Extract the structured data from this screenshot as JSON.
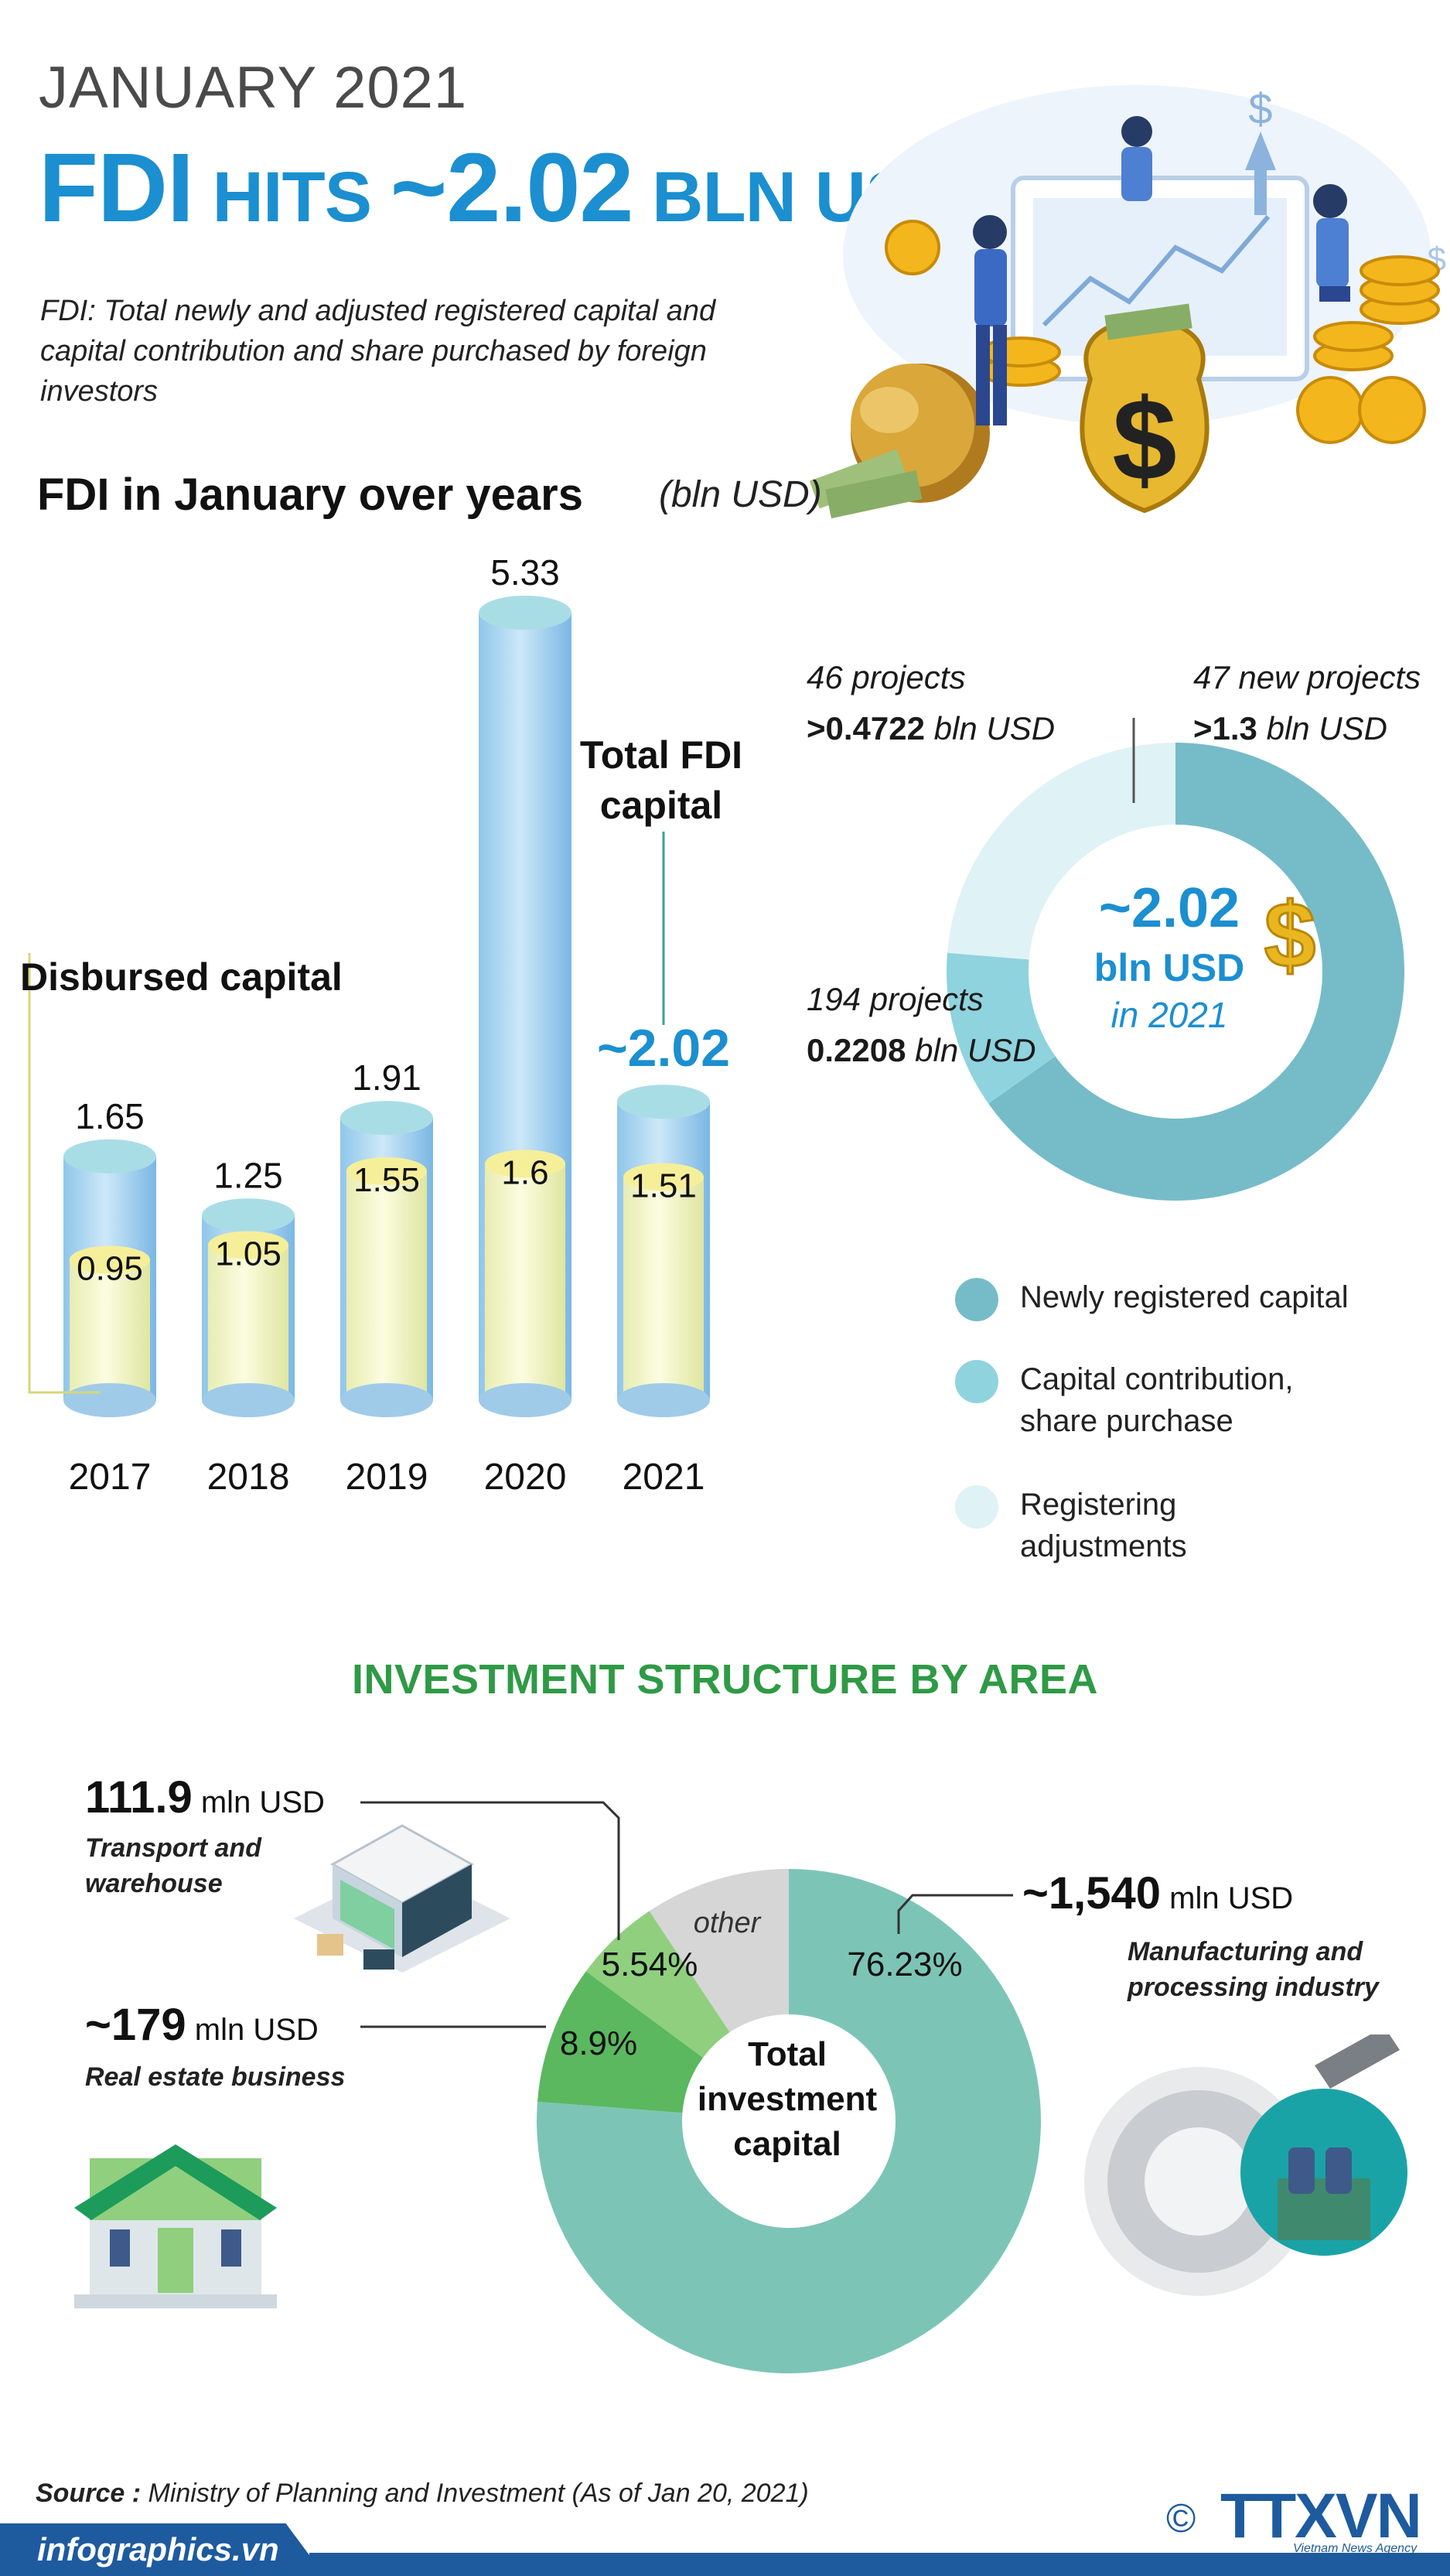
{
  "header": {
    "month": "JANUARY 2021",
    "headline_prefix": "FDI",
    "headline_mid": " HITS ",
    "headline_value": "~2.02",
    "headline_unit": " BLN USD",
    "definition": "FDI: Total newly and adjusted registered capital and capital contribution and share purchased by foreign investors"
  },
  "section1": {
    "title": "FDI in January over years",
    "unit": "(bln USD)",
    "total_label_line1": "Total FDI",
    "total_label_line2": "capital",
    "disbursed_label": "Disbursed capital",
    "total_2021_label": "~2.02"
  },
  "colors": {
    "headline_blue": "#1b8fd0",
    "newly_registered": "#75bcc8",
    "capital_contribution": "#8fd3df",
    "registering_adjustments": "#dff2f6",
    "manufacturing": "#7cc5b6",
    "real_estate": "#5bb85f",
    "transport": "#8fcf7e",
    "other": "#d6d6d6",
    "section_green": "#2f9a45",
    "logo_blue": "#1e5a9e"
  },
  "chart_data": [
    {
      "type": "bar",
      "title": "FDI in January over years",
      "unit": "(bln USD)",
      "categories": [
        "2017",
        "2018",
        "2019",
        "2020",
        "2021"
      ],
      "series": [
        {
          "name": "Total FDI capital",
          "values": [
            1.65,
            1.25,
            1.91,
            5.33,
            2.02
          ]
        },
        {
          "name": "Disbursed capital",
          "values": [
            0.95,
            1.05,
            1.55,
            1.6,
            1.51
          ]
        }
      ],
      "value_labels_total": [
        "1.65",
        "1.25",
        "1.91",
        "5.33",
        "~2.02"
      ],
      "value_labels_disbursed": [
        "0.95",
        "1.05",
        "1.55",
        "1.6",
        "1.51"
      ],
      "ylim": [
        0,
        5.33
      ]
    },
    {
      "type": "pie",
      "variant": "donut",
      "center_value": "~2.02",
      "center_unit": "bln USD",
      "center_year": "in 2021",
      "slices": [
        {
          "name": "Newly registered capital",
          "value": 1.3,
          "projects": "47 new projects",
          "amount_prefix": ">1.3",
          "amount_unit": " bln USD"
        },
        {
          "name": "Capital contribution, share purchase",
          "value": 0.2208,
          "projects": "194 projects",
          "amount_prefix": "0.2208",
          "amount_unit": " bln USD"
        },
        {
          "name": "Registering adjustments",
          "value": 0.4722,
          "projects": "46 projects",
          "amount_prefix": ">0.4722",
          "amount_unit": " bln USD"
        }
      ],
      "legend": [
        "Newly registered capital",
        "Capital contribution, share purchase",
        "Registering adjustments"
      ]
    },
    {
      "type": "pie",
      "variant": "donut",
      "title": "INVESTMENT STRUCTURE BY AREA",
      "center_label_lines": [
        "Total",
        "investment",
        "capital"
      ],
      "slices": [
        {
          "name": "Manufacturing and processing industry",
          "percent": 76.23,
          "label": "76.23%",
          "value_label": "~1,540",
          "unit": "mln USD"
        },
        {
          "name": "Real estate business",
          "percent": 8.9,
          "label": "8.9%",
          "value_label": "~179",
          "unit": "mln USD"
        },
        {
          "name": "Transport and warehouse",
          "percent": 5.54,
          "label": "5.54%",
          "value_label": "111.9",
          "unit": "mln USD"
        },
        {
          "name": "other",
          "percent": 9.33,
          "label": "other"
        }
      ]
    }
  ],
  "annotations": {
    "transport_value": "111.9",
    "transport_unit": " mln USD",
    "transport_desc_1": "Transport and",
    "transport_desc_2": "warehouse",
    "realestate_value": "~179",
    "realestate_unit": " mln USD",
    "realestate_desc": "Real estate business",
    "manufacturing_value": "~1,540",
    "manufacturing_unit": " mln USD",
    "manufacturing_desc_1": "Manufacturing and",
    "manufacturing_desc_2": "processing industry"
  },
  "footer": {
    "source_label": "Source :",
    "source_text": " Ministry of Planning and Investment (As of Jan 20, 2021)",
    "site": "infographics.vn",
    "copyright": "©",
    "logo": "TTXVN",
    "logo_sub": "Vietnam News Agency"
  }
}
